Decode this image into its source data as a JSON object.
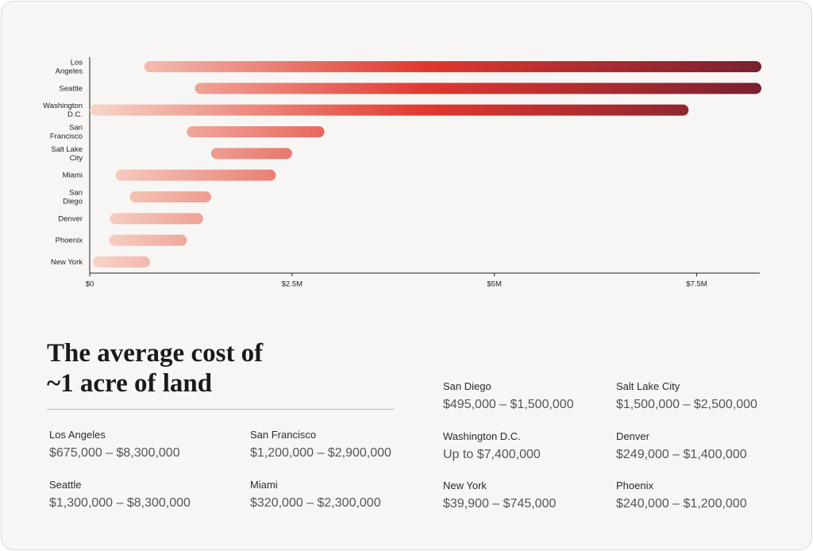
{
  "chart_data": {
    "type": "range-bar",
    "categories": [
      "Los Angeles",
      "Seattle",
      "Washington D.C.",
      "San Francisco",
      "Salt Lake City",
      "Miami",
      "San Diego",
      "Denver",
      "Phoenix",
      "New York"
    ],
    "low": [
      675000,
      1300000,
      0,
      1200000,
      1500000,
      320000,
      495000,
      249000,
      240000,
      39900
    ],
    "high": [
      8300000,
      8300000,
      7400000,
      2900000,
      2500000,
      2300000,
      1500000,
      1400000,
      1200000,
      745000
    ],
    "colors": [
      "#f6d5c8",
      "#e0382f",
      "#772130"
    ],
    "xlim": [
      0,
      8300000
    ],
    "xticks": [
      {
        "value": 0,
        "label": "$0"
      },
      {
        "value": 2500000,
        "label": "$2.5M"
      },
      {
        "value": 5000000,
        "label": "$5M"
      },
      {
        "value": 7500000,
        "label": "$7.5M"
      }
    ]
  },
  "summary": {
    "title": "The average cost of ~1 acre of land",
    "items": [
      {
        "city": "Los Angeles",
        "range": "$675,000 – $8,300,000"
      },
      {
        "city": "San Francisco",
        "range": "$1,200,000 – $2,900,000"
      },
      {
        "city": "Seattle",
        "range": "$1,300,000 – $8,300,000"
      },
      {
        "city": "Miami",
        "range": "$320,000 – $2,300,000"
      },
      {
        "city": "San Diego",
        "range": "$495,000 – $1,500,000"
      },
      {
        "city": "Salt Lake City",
        "range": "$1,500,000 – $2,500,000"
      },
      {
        "city": "Washington D.C.",
        "range": "Up to $7,400,000"
      },
      {
        "city": "Denver",
        "range": "$249,000 – $1,400,000"
      },
      {
        "city": "New York",
        "range": "$39,900 – $745,000"
      },
      {
        "city": "Phoenix",
        "range": "$240,000 – $1,200,000"
      }
    ]
  }
}
